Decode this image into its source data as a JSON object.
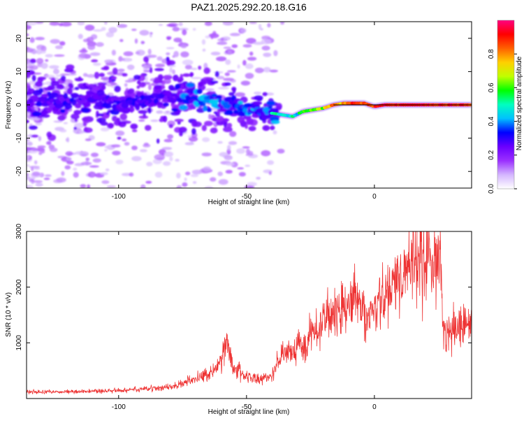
{
  "title": "PAZ1.2025.292.20.18.G16",
  "chart_data": [
    {
      "type": "heatmap",
      "xlabel": "Height of straight line (km)",
      "ylabel": "Frequency (Hz)",
      "xlim": [
        -136,
        38
      ],
      "ylim": [
        -25,
        25
      ],
      "x_ticks": [
        -100,
        -50,
        0
      ],
      "x_tick_labels": [
        "-100",
        "-50",
        "0"
      ],
      "y_ticks": [
        -20,
        -10,
        0,
        10,
        20
      ],
      "y_tick_labels": [
        "-20",
        "-10",
        "0",
        "10",
        "20"
      ],
      "colorbar": {
        "label": "Normalized spectral amplitude",
        "range": [
          0,
          1
        ],
        "ticks": [
          0.0,
          0.2,
          0.4,
          0.6,
          0.8
        ],
        "tick_labels": [
          "0.0",
          "0.2",
          "0.4",
          "0.6",
          "0.8"
        ],
        "colors": [
          "#ffffff",
          "#d4b6ff",
          "#9b30ff",
          "#6a00ff",
          "#0000ff",
          "#00c0ff",
          "#00ffc0",
          "#00ff00",
          "#c0ff00",
          "#ffd000",
          "#ff6000",
          "#ff0000",
          "#ff0080"
        ]
      },
      "track": [
        [
          -136,
          1.5
        ],
        [
          -120,
          1.5
        ],
        [
          -100,
          0.5
        ],
        [
          -90,
          2
        ],
        [
          -80,
          3
        ],
        [
          -70,
          2
        ],
        [
          -65,
          1
        ],
        [
          -60,
          0
        ],
        [
          -55,
          -1
        ],
        [
          -50,
          -1
        ],
        [
          -45,
          -1.5
        ],
        [
          -40,
          -2.5
        ],
        [
          -36,
          -3
        ],
        [
          -32,
          -3.5
        ],
        [
          -28,
          -2
        ],
        [
          -24,
          -1.5
        ],
        [
          -20,
          -1
        ],
        [
          -16,
          0
        ],
        [
          -12,
          0.5
        ],
        [
          -8,
          0.5
        ],
        [
          -4,
          0.5
        ],
        [
          0,
          -0.5
        ],
        [
          4,
          0
        ],
        [
          10,
          0
        ],
        [
          20,
          0
        ],
        [
          38,
          0
        ]
      ],
      "reference_line_hz": 0
    },
    {
      "type": "line",
      "xlabel": "Height of straight line (km)",
      "ylabel": "SNR (10 * v/v)",
      "xlim": [
        -136,
        38
      ],
      "ylim": [
        0,
        3000
      ],
      "x_ticks": [
        -100,
        -50,
        0
      ],
      "x_tick_labels": [
        "-100",
        "-50",
        "0"
      ],
      "y_ticks": [
        1000,
        2000,
        3000
      ],
      "y_tick_labels": [
        "1000",
        "2000",
        "3000"
      ],
      "line_color": "#ee3333",
      "series": [
        {
          "name": "SNR",
          "x": [
            -136,
            -120,
            -100,
            -80,
            -70,
            -63,
            -60,
            -58,
            -55,
            -50,
            -45,
            -42,
            -40,
            -37,
            -35,
            -33,
            -30,
            -27,
            -25,
            -22,
            -20,
            -18,
            -15,
            -13,
            -10,
            -8,
            -5,
            -3,
            0,
            3,
            5,
            8,
            10,
            12,
            15,
            18,
            20,
            23,
            25,
            26,
            27,
            30,
            35,
            38
          ],
          "y": [
            120,
            120,
            140,
            200,
            350,
            480,
            700,
            1000,
            550,
            400,
            350,
            380,
            420,
            700,
            850,
            800,
            1000,
            900,
            1200,
            1100,
            1400,
            1450,
            1550,
            1650,
            1700,
            1800,
            1650,
            1450,
            1600,
            1700,
            1950,
            2100,
            2100,
            2200,
            2450,
            2550,
            2500,
            2550,
            2550,
            2400,
            1100,
            1300,
            1250,
            1300
          ]
        }
      ]
    }
  ]
}
